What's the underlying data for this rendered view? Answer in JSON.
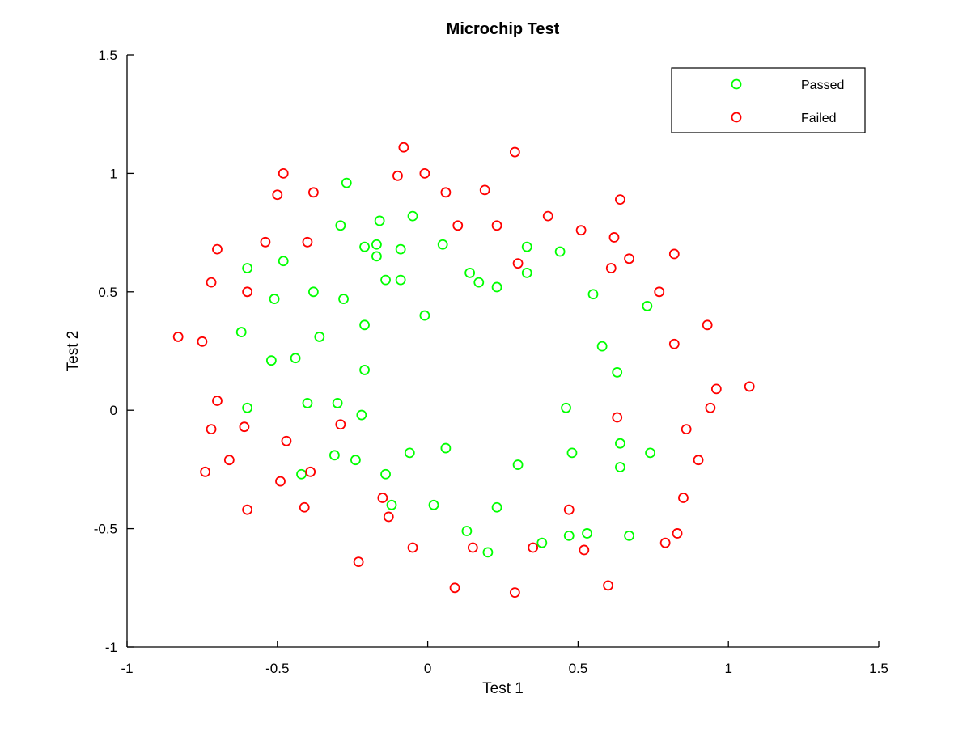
{
  "chart_data": {
    "type": "scatter",
    "title": "Microchip Test",
    "xlabel": "Test 1",
    "ylabel": "Test 2",
    "xlim": [
      -1,
      1.5
    ],
    "ylim": [
      -1,
      1.5
    ],
    "xticks": [
      -1,
      -0.5,
      0,
      0.5,
      1,
      1.5
    ],
    "yticks": [
      -1,
      -0.5,
      0,
      0.5,
      1,
      1.5
    ],
    "xtick_labels": [
      "-1",
      "-0.5",
      "0",
      "0.5",
      "1",
      "1.5"
    ],
    "ytick_labels": [
      "-1",
      "-0.5",
      "0",
      "0.5",
      "1",
      "1.5"
    ],
    "grid": false,
    "legend_position": "top-right",
    "marker": "open-circle",
    "series": [
      {
        "name": "Passed",
        "color": "#00ff00",
        "points": [
          [
            -0.27,
            0.96
          ],
          [
            -0.16,
            0.8
          ],
          [
            -0.05,
            0.82
          ],
          [
            -0.29,
            0.78
          ],
          [
            -0.21,
            0.69
          ],
          [
            -0.17,
            0.7
          ],
          [
            -0.09,
            0.68
          ],
          [
            -0.17,
            0.65
          ],
          [
            0.05,
            0.7
          ],
          [
            0.33,
            0.69
          ],
          [
            0.44,
            0.67
          ],
          [
            -0.6,
            0.6
          ],
          [
            -0.48,
            0.63
          ],
          [
            -0.14,
            0.55
          ],
          [
            -0.09,
            0.55
          ],
          [
            0.14,
            0.58
          ],
          [
            0.17,
            0.54
          ],
          [
            0.23,
            0.52
          ],
          [
            0.33,
            0.58
          ],
          [
            0.55,
            0.49
          ],
          [
            0.73,
            0.44
          ],
          [
            -0.51,
            0.47
          ],
          [
            -0.38,
            0.5
          ],
          [
            -0.28,
            0.47
          ],
          [
            -0.01,
            0.4
          ],
          [
            -0.62,
            0.33
          ],
          [
            -0.36,
            0.31
          ],
          [
            -0.21,
            0.36
          ],
          [
            0.58,
            0.27
          ],
          [
            -0.52,
            0.21
          ],
          [
            -0.44,
            0.22
          ],
          [
            -0.21,
            0.17
          ],
          [
            0.63,
            0.16
          ],
          [
            -0.6,
            0.01
          ],
          [
            -0.4,
            0.03
          ],
          [
            -0.3,
            0.03
          ],
          [
            -0.22,
            -0.02
          ],
          [
            0.46,
            0.01
          ],
          [
            0.06,
            -0.16
          ],
          [
            0.64,
            -0.14
          ],
          [
            -0.31,
            -0.19
          ],
          [
            -0.24,
            -0.21
          ],
          [
            -0.06,
            -0.18
          ],
          [
            0.48,
            -0.18
          ],
          [
            0.74,
            -0.18
          ],
          [
            0.3,
            -0.23
          ],
          [
            0.64,
            -0.24
          ],
          [
            -0.42,
            -0.27
          ],
          [
            -0.14,
            -0.27
          ],
          [
            -0.12,
            -0.4
          ],
          [
            0.02,
            -0.4
          ],
          [
            0.23,
            -0.41
          ],
          [
            0.13,
            -0.51
          ],
          [
            0.47,
            -0.53
          ],
          [
            0.53,
            -0.52
          ],
          [
            0.67,
            -0.53
          ],
          [
            0.38,
            -0.56
          ],
          [
            0.2,
            -0.6
          ]
        ]
      },
      {
        "name": "Failed",
        "color": "#ff0000",
        "points": [
          [
            -0.08,
            1.11
          ],
          [
            0.29,
            1.09
          ],
          [
            -0.48,
            1.0
          ],
          [
            -0.1,
            0.99
          ],
          [
            -0.01,
            1.0
          ],
          [
            -0.5,
            0.91
          ],
          [
            -0.38,
            0.92
          ],
          [
            0.06,
            0.92
          ],
          [
            0.19,
            0.93
          ],
          [
            0.64,
            0.89
          ],
          [
            0.4,
            0.82
          ],
          [
            0.1,
            0.78
          ],
          [
            0.23,
            0.78
          ],
          [
            0.51,
            0.76
          ],
          [
            0.62,
            0.73
          ],
          [
            -0.7,
            0.68
          ],
          [
            -0.54,
            0.71
          ],
          [
            -0.4,
            0.71
          ],
          [
            0.82,
            0.66
          ],
          [
            0.67,
            0.64
          ],
          [
            0.3,
            0.62
          ],
          [
            0.61,
            0.6
          ],
          [
            -0.72,
            0.54
          ],
          [
            -0.6,
            0.5
          ],
          [
            0.77,
            0.5
          ],
          [
            0.93,
            0.36
          ],
          [
            -0.83,
            0.31
          ],
          [
            -0.75,
            0.29
          ],
          [
            0.82,
            0.28
          ],
          [
            0.96,
            0.09
          ],
          [
            1.07,
            0.1
          ],
          [
            -0.7,
            0.04
          ],
          [
            0.94,
            0.01
          ],
          [
            -0.61,
            -0.07
          ],
          [
            -0.29,
            -0.06
          ],
          [
            0.63,
            -0.03
          ],
          [
            -0.72,
            -0.08
          ],
          [
            0.86,
            -0.08
          ],
          [
            -0.47,
            -0.13
          ],
          [
            -0.66,
            -0.21
          ],
          [
            0.9,
            -0.21
          ],
          [
            -0.74,
            -0.26
          ],
          [
            -0.39,
            -0.26
          ],
          [
            -0.49,
            -0.3
          ],
          [
            0.85,
            -0.37
          ],
          [
            -0.15,
            -0.37
          ],
          [
            -0.6,
            -0.42
          ],
          [
            -0.41,
            -0.41
          ],
          [
            0.47,
            -0.42
          ],
          [
            -0.13,
            -0.45
          ],
          [
            0.83,
            -0.52
          ],
          [
            0.79,
            -0.56
          ],
          [
            -0.05,
            -0.58
          ],
          [
            0.15,
            -0.58
          ],
          [
            0.35,
            -0.58
          ],
          [
            0.52,
            -0.59
          ],
          [
            -0.23,
            -0.64
          ],
          [
            0.6,
            -0.74
          ],
          [
            0.09,
            -0.75
          ],
          [
            0.29,
            -0.77
          ]
        ]
      }
    ]
  }
}
